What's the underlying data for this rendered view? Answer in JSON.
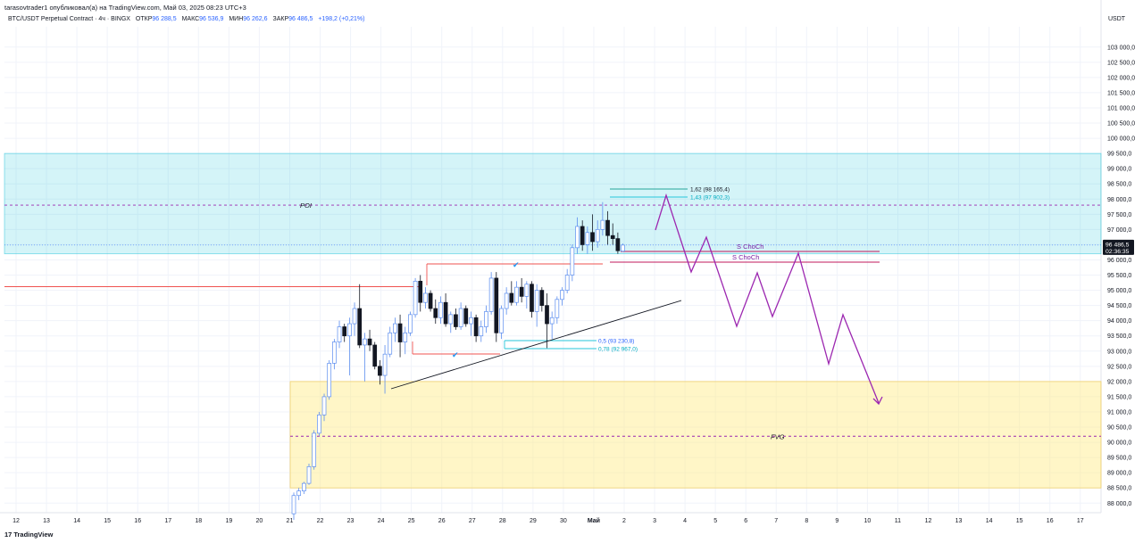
{
  "header": {
    "publisher_line": "tarasovtrader1 опубликовал(а) на TradingView.com, Май 03, 2025 08:23 UTC+3",
    "symbol_line": "BTC/USDT Perpetual Contract · 4ч · BINGX",
    "ohlc": {
      "open_label": "ОТКР",
      "open": "96 288,5",
      "high_label": "МАКС",
      "high": "96 536,9",
      "low_label": "МИН",
      "low": "96 262,6",
      "close_label": "ЗАКР",
      "close": "96 486,5",
      "change": "+198,2 (+0,21%)"
    },
    "currency": "USDT"
  },
  "footer": {
    "logo_mark": "17",
    "logo_text": "TradingView"
  },
  "chart_data": {
    "type": "candlestick",
    "y_axis": {
      "range": [
        87700,
        103400
      ],
      "step": 500,
      "ticks": [
        "103 000,0",
        "102 500,0",
        "102 000,0",
        "101 500,0",
        "101 000,0",
        "100 500,0",
        "100 000,0",
        "99 500,0",
        "99 000,0",
        "98 500,0",
        "98 000,0",
        "97 500,0",
        "97 000,0",
        "96 500,0",
        "96 000,0",
        "95 500,0",
        "95 000,0",
        "94 500,0",
        "94 000,0",
        "93 500,0",
        "93 000,0",
        "92 500,0",
        "92 000,0",
        "91 500,0",
        "91 000,0",
        "90 500,0",
        "90 000,0",
        "89 500,0",
        "89 000,0",
        "88 500,0",
        "88 000,0"
      ]
    },
    "x_axis": {
      "labels": [
        "12",
        "13",
        "14",
        "15",
        "16",
        "17",
        "18",
        "19",
        "20",
        "21",
        "22",
        "23",
        "24",
        "25",
        "26",
        "27",
        "28",
        "29",
        "30",
        "Май",
        "2",
        "3",
        "4",
        "5",
        "6",
        "7",
        "8",
        "9",
        "10",
        "11",
        "12",
        "13",
        "14",
        "15",
        "16",
        "17"
      ],
      "bold_label": "Май"
    },
    "last_price": {
      "price": "96 486,5",
      "countdown": "02:36:35",
      "value": 96486.5
    },
    "candles": [
      [
        87650,
        88350,
        87450,
        88250
      ],
      [
        88250,
        88500,
        88100,
        88400
      ],
      [
        88400,
        88700,
        88300,
        88650
      ],
      [
        88650,
        89300,
        88600,
        89200
      ],
      [
        89200,
        90400,
        89100,
        90300
      ],
      [
        90300,
        91000,
        90200,
        90900
      ],
      [
        90900,
        91600,
        90700,
        91500
      ],
      [
        91500,
        92700,
        91400,
        92600
      ],
      [
        92600,
        93400,
        92400,
        93300
      ],
      [
        93300,
        94000,
        93100,
        93800
      ],
      [
        93800,
        93900,
        93300,
        93500
      ],
      [
        93500,
        94100,
        92200,
        93900
      ],
      [
        93900,
        94600,
        93500,
        94400
      ],
      [
        94400,
        95200,
        93100,
        93200
      ],
      [
        93200,
        93600,
        92000,
        93400
      ],
      [
        93400,
        93700,
        93000,
        93200
      ],
      [
        93200,
        93300,
        92400,
        92500
      ],
      [
        92500,
        92700,
        91900,
        92200
      ],
      [
        92200,
        93200,
        91600,
        92900
      ],
      [
        92900,
        93800,
        92800,
        93600
      ],
      [
        93600,
        94100,
        93300,
        93900
      ],
      [
        93900,
        94200,
        92800,
        93300
      ],
      [
        93300,
        93800,
        92900,
        93600
      ],
      [
        93600,
        94300,
        93500,
        94200
      ],
      [
        94200,
        95400,
        94100,
        95300
      ],
      [
        95300,
        95500,
        94300,
        94600
      ],
      [
        94600,
        95100,
        94400,
        94900
      ],
      [
        94900,
        95000,
        94300,
        94400
      ],
      [
        94400,
        94700,
        93900,
        94100
      ],
      [
        94100,
        94800,
        93900,
        94600
      ],
      [
        94600,
        94900,
        93800,
        93900
      ],
      [
        93900,
        94300,
        93600,
        94200
      ],
      [
        94200,
        94400,
        93700,
        93800
      ],
      [
        93800,
        94600,
        93700,
        94400
      ],
      [
        94400,
        94500,
        93800,
        93900
      ],
      [
        93900,
        94300,
        93500,
        94100
      ],
      [
        94100,
        94200,
        93300,
        93500
      ],
      [
        93500,
        94000,
        93300,
        93800
      ],
      [
        93800,
        94500,
        93600,
        94300
      ],
      [
        94300,
        95600,
        94200,
        95400
      ],
      [
        95400,
        95600,
        93300,
        93600
      ],
      [
        93600,
        94500,
        93400,
        94400
      ],
      [
        94400,
        95100,
        94200,
        94900
      ],
      [
        94900,
        95300,
        94500,
        94600
      ],
      [
        94600,
        95300,
        94500,
        95100
      ],
      [
        95100,
        95400,
        94600,
        94800
      ],
      [
        94800,
        95300,
        94400,
        95200
      ],
      [
        95200,
        95300,
        94100,
        94300
      ],
      [
        94300,
        95200,
        93800,
        95000
      ],
      [
        95000,
        95100,
        94300,
        94500
      ],
      [
        94500,
        94900,
        93100,
        93900
      ],
      [
        93900,
        94300,
        93400,
        94100
      ],
      [
        94100,
        94800,
        93900,
        94700
      ],
      [
        94700,
        95100,
        94500,
        95000
      ],
      [
        95000,
        95700,
        94900,
        95500
      ],
      [
        95500,
        96500,
        95300,
        96400
      ],
      [
        96400,
        97400,
        96200,
        97100
      ],
      [
        97100,
        97300,
        96300,
        96500
      ],
      [
        96500,
        97100,
        96200,
        96900
      ],
      [
        96900,
        97500,
        96300,
        96600
      ],
      [
        96600,
        97300,
        96400,
        97000
      ],
      [
        97000,
        97900,
        96800,
        97300
      ],
      [
        97300,
        97600,
        96500,
        96800
      ],
      [
        96800,
        97200,
        96500,
        96700
      ],
      [
        96700,
        96900,
        96200,
        96300
      ],
      [
        96288.5,
        96536.9,
        96262.6,
        96486.5
      ]
    ],
    "zones": [
      {
        "name": "POI",
        "from": 96200,
        "to": 99500
      },
      {
        "name": "FVG",
        "from": 88500,
        "to": 92000
      }
    ],
    "level_lines": [
      {
        "name": "POI",
        "price": 97800
      },
      {
        "name": "FVG",
        "price": 90200
      }
    ],
    "annotations": {
      "choch_1": "S ChoCh",
      "choch_2": "S ChoCh",
      "fib_162": "1,62 (98 165,4)",
      "fib_143": "1,43 (97 902,3)",
      "fib_05": "0,5 (93 230,8)",
      "fib_078": "0,78 (92 967,0)",
      "check_mark": "✔"
    }
  }
}
